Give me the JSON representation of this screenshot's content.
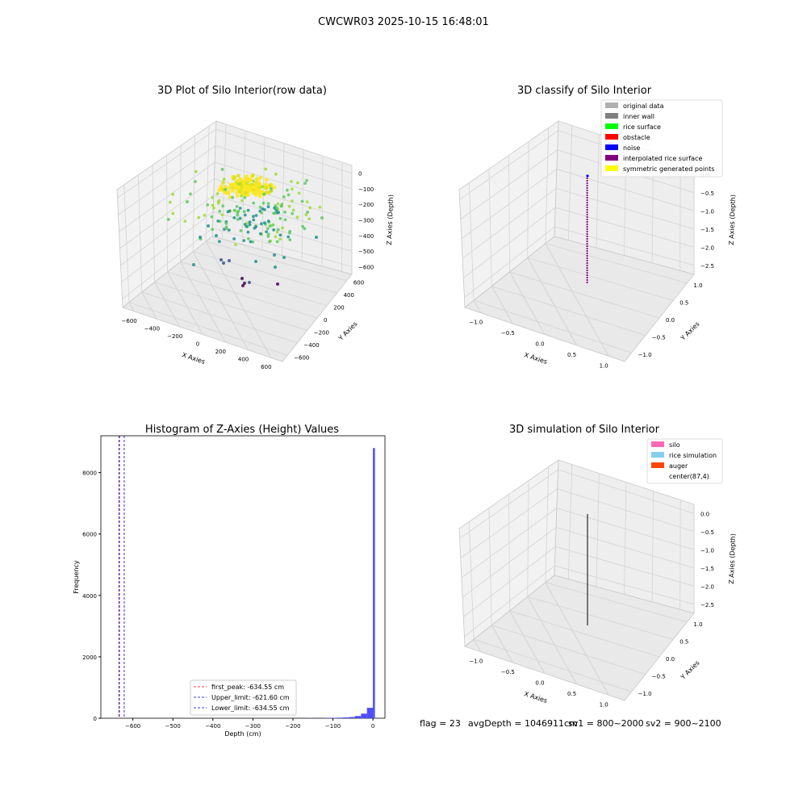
{
  "figure": {
    "suptitle": "CWCWR03 2025-10-15 16:48:01",
    "footer": {
      "flag": "flag = 23",
      "avg_depth": "avgDepth = 1046911cm",
      "sv1": "sv1 = 800~2000",
      "sv2": "sv2 = 900~2100"
    }
  },
  "chart_data": [
    {
      "type": "scatter",
      "projection": "3d",
      "title": "3D Plot of Silo Interior(row data)",
      "xlabel": "X Axies",
      "ylabel": "Y Axies",
      "zlabel": "Z Axies (Depth)",
      "xticks": [
        "−600",
        "−400",
        "−200",
        "0",
        "200",
        "400",
        "600"
      ],
      "yticks": [
        "−600",
        "−400",
        "−200",
        "0",
        "200",
        "400",
        "600"
      ],
      "zticks": [
        "0",
        "−100",
        "−200",
        "−300",
        "−400",
        "−500",
        "−600"
      ],
      "xlim": [
        -700,
        700
      ],
      "ylim": [
        -700,
        700
      ],
      "zlim": [
        -650,
        0
      ],
      "colormap": "viridis",
      "note": "dense cluster of points near center at shallow depth, sparse points spread down to about -650"
    },
    {
      "type": "scatter",
      "projection": "3d",
      "title": "3D classify of Silo Interior",
      "xlabel": "X Axies",
      "ylabel": "Y Axies",
      "zlabel": "Z Axies (Depth)",
      "xticks": [
        "−1.0",
        "−0.5",
        "0.0",
        "0.5",
        "1.0"
      ],
      "yticks": [
        "−1.0",
        "−0.5",
        "0.0",
        "0.5",
        "1.0"
      ],
      "zticks": [
        "0.0",
        "−0.5",
        "−1.0",
        "−1.5",
        "−2.0",
        "−2.5"
      ],
      "legend_position": "top-right",
      "legend": [
        {
          "label": "original data",
          "color": "#b0b0b0"
        },
        {
          "label": "inner wall",
          "color": "#808080"
        },
        {
          "label": "rice surface",
          "color": "#00ff00"
        },
        {
          "label": "obstacle",
          "color": "#ff0000"
        },
        {
          "label": "noise",
          "color": "#0000ff"
        },
        {
          "label": "interpolated rice surface",
          "color": "#800080"
        },
        {
          "label": "symmetric generated points",
          "color": "#ffff00"
        }
      ]
    },
    {
      "type": "bar",
      "title": "Histogram of Z-Axies (Height) Values",
      "xlabel": "Depth (cm)",
      "ylabel": "Frequency",
      "xlim": [
        -680,
        30
      ],
      "ylim": [
        0,
        9200
      ],
      "xticks": [
        -600,
        -500,
        -400,
        -300,
        -200,
        -100,
        0
      ],
      "xtick_labels": [
        "−600",
        "−500",
        "−400",
        "−300",
        "−200",
        "−100",
        "0"
      ],
      "yticks": [
        0,
        2000,
        4000,
        6000,
        8000
      ],
      "bar_color": "#4d4dff",
      "bins": [
        {
          "x0": -165,
          "x1": -150,
          "value": 5
        },
        {
          "x0": -120,
          "x1": -105,
          "value": 8
        },
        {
          "x0": -105,
          "x1": -90,
          "value": 12
        },
        {
          "x0": -90,
          "x1": -75,
          "value": 18
        },
        {
          "x0": -75,
          "x1": -60,
          "value": 25
        },
        {
          "x0": -60,
          "x1": -45,
          "value": 40
        },
        {
          "x0": -45,
          "x1": -30,
          "value": 70
        },
        {
          "x0": -30,
          "x1": -15,
          "value": 150
        },
        {
          "x0": -15,
          "x1": 0,
          "value": 340
        },
        {
          "x0": 0,
          "x1": 5,
          "value": 8800
        }
      ],
      "vlines": [
        {
          "x": -634.55,
          "color": "#ff0000",
          "label": "first_peak: -634.55 cm"
        },
        {
          "x": -621.6,
          "color": "#0000cc",
          "label": "Upper_limit: -621.60 cm"
        },
        {
          "x": -634.55,
          "color": "#0000cc",
          "label": "Lower_limit: -634.55 cm"
        }
      ],
      "legend_position": "lower-center"
    },
    {
      "type": "line",
      "projection": "3d",
      "title": "3D simulation of Silo Interior",
      "xlabel": "X Axies",
      "ylabel": "Y Axies",
      "zlabel": "Z Axies (Depth)",
      "xticks": [
        "−1.0",
        "−0.5",
        "0.0",
        "0.5",
        "1.0"
      ],
      "yticks": [
        "−1.0",
        "−0.5",
        "0.0",
        "0.5",
        "1.0"
      ],
      "zticks": [
        "0.0",
        "−0.5",
        "−1.0",
        "−1.5",
        "−2.0",
        "−2.5"
      ],
      "legend_position": "top-right",
      "legend": [
        {
          "label": "silo",
          "color": "#ff69b4"
        },
        {
          "label": "rice simulation",
          "color": "#87ceeb"
        },
        {
          "label": "auger",
          "color": "#ff4500"
        },
        {
          "label": "center(87,4)",
          "color": "#ffffff"
        }
      ]
    }
  ]
}
